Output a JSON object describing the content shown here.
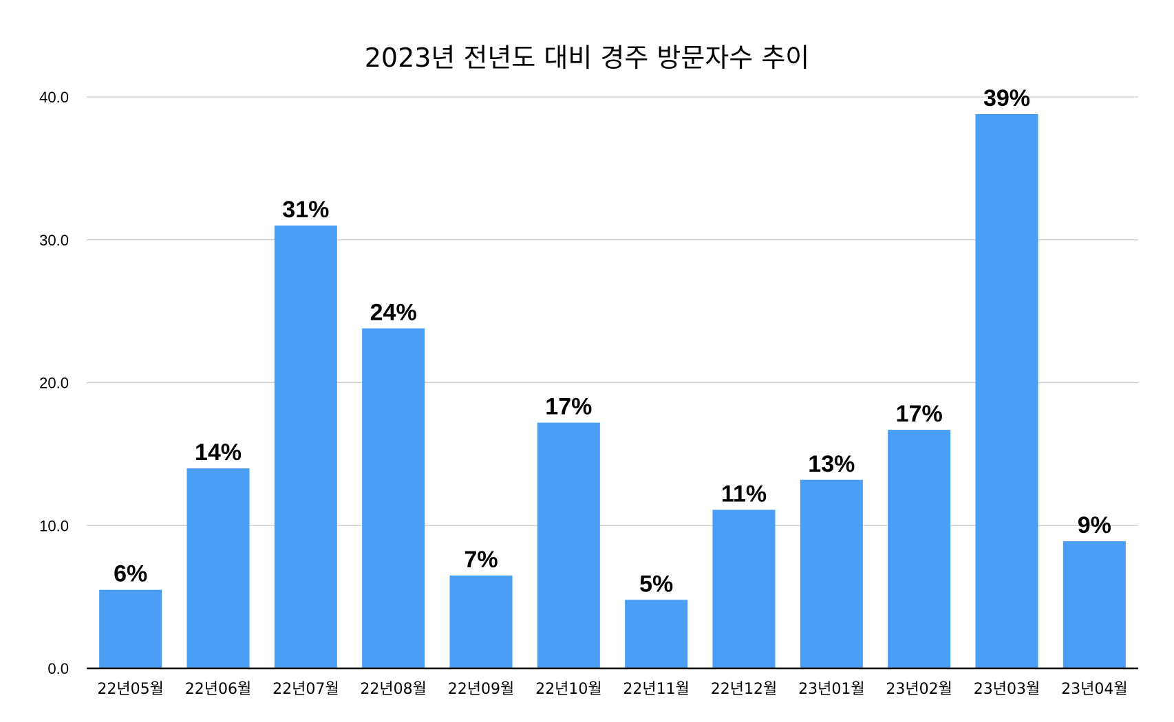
{
  "chart_data": {
    "type": "bar",
    "title": "2023년 전년도 대비 경주 방문자수 추이",
    "xlabel": "",
    "ylabel": "",
    "categories": [
      "22년05월",
      "22년06월",
      "22년07월",
      "22년08월",
      "22년09월",
      "22년10월",
      "22년11월",
      "22년12월",
      "23년01월",
      "23년02월",
      "23년03월",
      "23년04월"
    ],
    "values": [
      5.5,
      14.0,
      31.0,
      23.8,
      6.5,
      17.2,
      4.8,
      11.1,
      13.2,
      16.7,
      38.8,
      8.9
    ],
    "data_labels": [
      "6%",
      "14%",
      "31%",
      "24%",
      "7%",
      "17%",
      "5%",
      "11%",
      "13%",
      "17%",
      "39%",
      "9%"
    ],
    "yticks": [
      "0.0",
      "10.0",
      "20.0",
      "30.0",
      "40.0"
    ],
    "ylim": [
      0,
      40
    ],
    "grid": true,
    "legend": "none",
    "bar_color": "#4a9ff5",
    "grid_color": "#cccccc",
    "axis_color": "#000000"
  }
}
